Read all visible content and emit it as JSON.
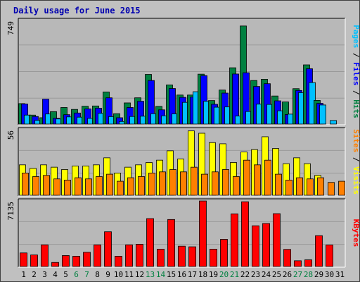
{
  "chart_data": {
    "type": "bar",
    "title": "Daily usage for June 2015",
    "categories": [
      "1",
      "2",
      "3",
      "4",
      "5",
      "6",
      "7",
      "8",
      "9",
      "10",
      "11",
      "12",
      "13",
      "14",
      "15",
      "16",
      "17",
      "18",
      "19",
      "20",
      "21",
      "22",
      "23",
      "24",
      "25",
      "26",
      "27",
      "28",
      "29",
      "30",
      "31"
    ],
    "weekend_days": [
      "6",
      "7",
      "13",
      "14",
      "20",
      "21",
      "27",
      "28"
    ],
    "colors": {
      "day_label": "#000000",
      "weekend_label": "#008040",
      "hits": "#008040",
      "files": "#0000ff",
      "pages": "#00c0ff",
      "visits": "#ffff00",
      "sites": "#ff8000",
      "kbytes": "#ff0000",
      "plot_bg": "#b8b8b8",
      "grid": "#9a9a9a"
    },
    "panels": [
      {
        "name": "hits-files-pages",
        "ymax_label": "749",
        "ylim": [
          0,
          749
        ],
        "right_label": [
          {
            "text": "Pages",
            "color": "#00c0ff"
          },
          {
            "text": " / ",
            "color": "#000000"
          },
          {
            "text": "Files",
            "color": "#0000ff"
          },
          {
            "text": " / ",
            "color": "#000000"
          },
          {
            "text": "Hits",
            "color": "#008040"
          }
        ],
        "series": [
          {
            "name": "Hits",
            "color": "#008040",
            "values": [
              148,
              65,
              46,
              90,
              120,
              106,
              129,
              131,
              232,
              75,
              153,
              190,
              359,
              128,
              283,
              210,
              210,
              361,
              170,
              246,
              407,
              709,
              315,
              324,
              203,
              160,
              256,
              428,
              171,
              0,
              0
            ]
          },
          {
            "name": "Files",
            "color": "#0000ff",
            "values": [
              145,
              55,
              180,
              42,
              68,
              80,
              110,
              115,
              190,
              46,
              120,
              165,
              315,
              103,
              257,
              193,
              195,
              350,
              143,
              224,
              362,
              371,
              272,
              292,
              168,
              69,
              243,
              400,
              150,
              0,
              0
            ]
          },
          {
            "name": "Pages",
            "color": "#00c0ff",
            "values": [
              65,
              27,
              73,
              37,
              52,
              50,
              41,
              78,
              54,
              19,
              55,
              57,
              75,
              60,
              74,
              157,
              234,
              165,
              122,
              124,
              58,
              91,
              144,
              142,
              96,
              72,
              227,
              300,
              138,
              26,
              0
            ]
          }
        ]
      },
      {
        "name": "visits-sites",
        "ymax_label": "56",
        "ylim": [
          0,
          56
        ],
        "right_label": [
          {
            "text": "Sites",
            "color": "#ff8000"
          },
          {
            "text": " / ",
            "color": "#000000"
          },
          {
            "text": "Visits",
            "color": "#ffff00"
          }
        ],
        "series": [
          {
            "name": "Visits",
            "color": "#ffff00",
            "values": [
              26,
              23,
              26,
              24,
              22,
              25,
              25,
              26,
              32,
              19,
              24,
              26,
              28,
              30,
              38,
              31,
              55,
              53,
              45,
              44,
              28,
              37,
              39,
              50,
              40,
              27,
              32,
              27,
              17,
              0,
              0
            ]
          },
          {
            "name": "Sites",
            "color": "#ff8000",
            "values": [
              19,
              16,
              17,
              14,
              13,
              15,
              14,
              16,
              18,
              12,
              15,
              16,
              19,
              20,
              22,
              20,
              24,
              18,
              20,
              22,
              16,
              30,
              26,
              30,
              18,
              13,
              15,
              14,
              15,
              11,
              12
            ]
          }
        ]
      },
      {
        "name": "kbytes",
        "ymax_label": "7135",
        "ylim": [
          0,
          7135
        ],
        "right_label": [
          {
            "text": "KBytes",
            "color": "#ff0000"
          }
        ],
        "series": [
          {
            "name": "KBytes",
            "color": "#ff0000",
            "values": [
              1477,
              1256,
              2355,
              442,
              1192,
              1118,
              1547,
              2355,
              3780,
              1116,
              2355,
              2415,
              5213,
              1888,
              5115,
              2211,
              2143,
              7130,
              1888,
              2953,
              5730,
              7047,
              4431,
              4681,
              5750,
              1860,
              624,
              728,
              3352,
              2340,
              0
            ]
          }
        ]
      }
    ]
  }
}
